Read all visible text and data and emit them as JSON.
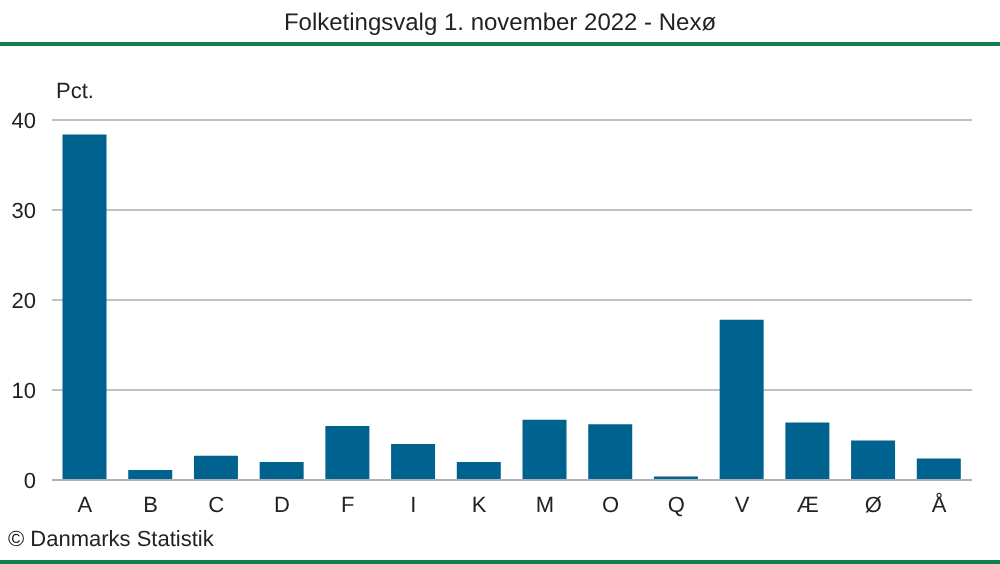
{
  "chart_data": {
    "type": "bar",
    "title": "Folketingsvalg 1. november 2022 - Nexø",
    "ylabel": "Pct.",
    "categories": [
      "A",
      "B",
      "C",
      "D",
      "F",
      "I",
      "K",
      "M",
      "O",
      "Q",
      "V",
      "Æ",
      "Ø",
      "Å"
    ],
    "values": [
      38.4,
      1.1,
      2.7,
      2.0,
      6.0,
      4.0,
      2.0,
      6.7,
      6.2,
      0.4,
      17.8,
      6.4,
      4.4,
      2.4
    ],
    "color": "#00628f",
    "ylim": [
      0,
      40
    ],
    "yticks": [
      0,
      10,
      20,
      30,
      40
    ],
    "grid": "y",
    "legend": false,
    "annotations": [
      "© Danmarks Statistik"
    ]
  }
}
